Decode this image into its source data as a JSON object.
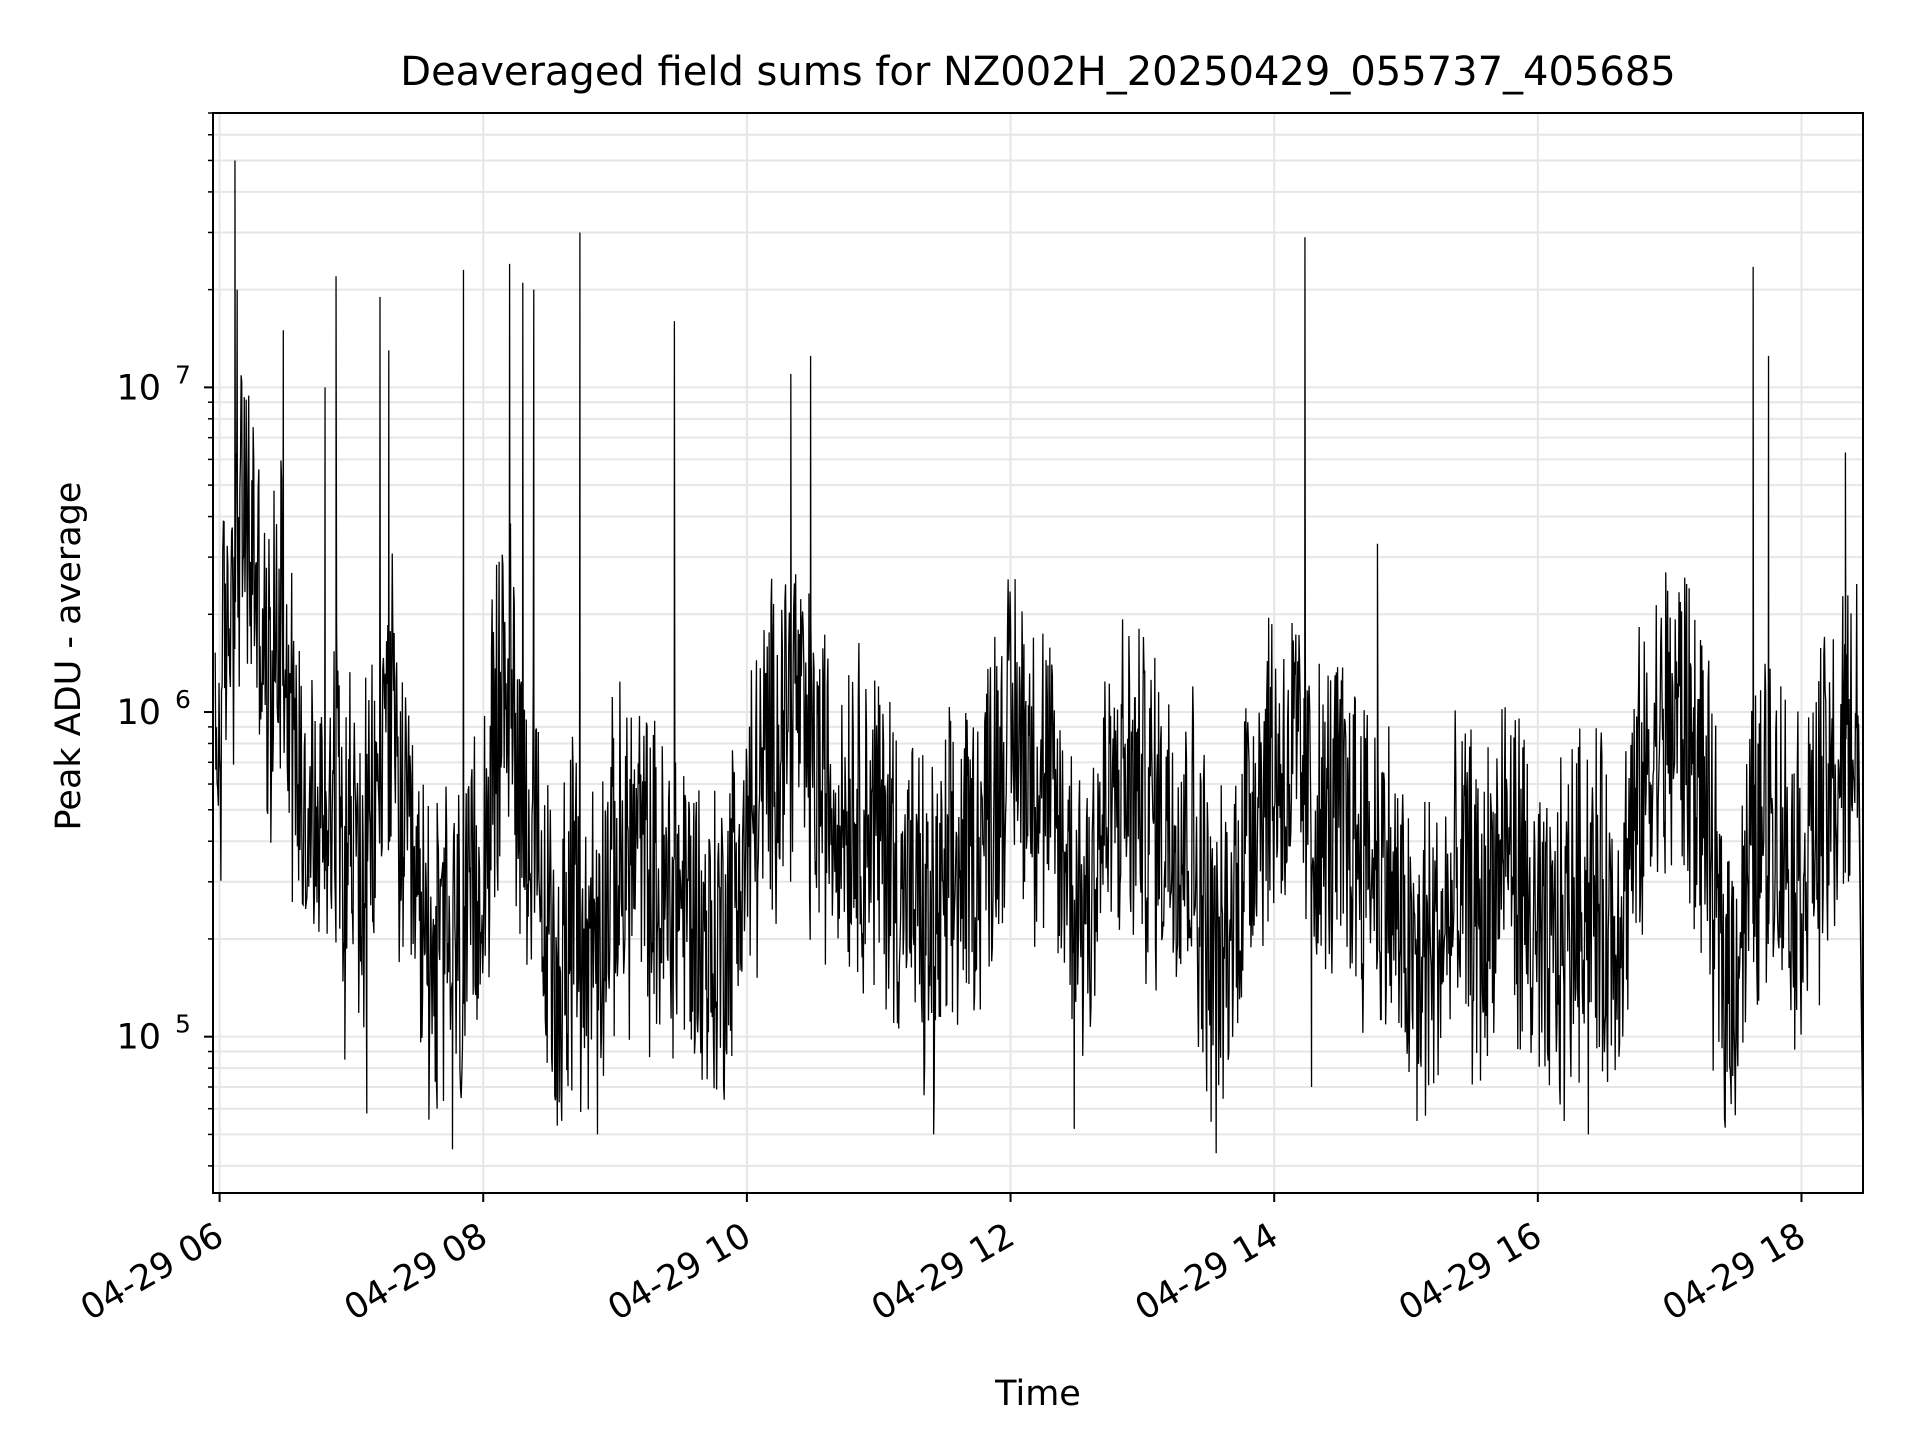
{
  "chart_data": {
    "type": "line",
    "title": "Deaveraged field sums for NZ002H_20250429_055737_405685",
    "xlabel": "Time",
    "ylabel": "Peak ADU - average",
    "yscale": "log",
    "xlim": [
      "2025-04-29 05:57",
      "2025-04-29 18:28"
    ],
    "ylim": [
      33000,
      70000000
    ],
    "grid": true,
    "line_color": "#000000",
    "grid_color": "#e6e6e6",
    "x_ticks": [
      "04-29 06",
      "04-29 08",
      "04-29 10",
      "04-29 12",
      "04-29 14",
      "04-29 16",
      "04-29 18"
    ],
    "y_ticks": [
      "10^5",
      "10^6",
      "10^7"
    ],
    "series": [
      {
        "points": [
          [
            "2025-04-29 05:58",
            600000
          ],
          [
            "2025-04-29 06:04",
            2000000
          ],
          [
            "2025-04-29 06:10",
            4000000
          ],
          [
            "2025-04-29 06:16",
            3000000
          ],
          [
            "2025-04-29 06:22",
            1000000
          ],
          [
            "2025-04-29 06:28",
            2500000
          ],
          [
            "2025-04-29 06:34",
            800000
          ],
          [
            "2025-04-29 06:40",
            500000
          ],
          [
            "2025-04-29 06:46",
            400000
          ],
          [
            "2025-04-29 06:52",
            700000
          ],
          [
            "2025-04-29 06:58",
            500000
          ],
          [
            "2025-04-29 07:04",
            300000
          ],
          [
            "2025-04-29 07:10",
            400000
          ],
          [
            "2025-04-29 07:16",
            1200000
          ],
          [
            "2025-04-29 07:22",
            500000
          ],
          [
            "2025-04-29 07:28",
            250000
          ],
          [
            "2025-04-29 07:34",
            200000
          ],
          [
            "2025-04-29 07:40",
            180000
          ],
          [
            "2025-04-29 07:46",
            200000
          ],
          [
            "2025-04-29 07:52",
            160000
          ],
          [
            "2025-04-29 07:58",
            300000
          ],
          [
            "2025-04-29 08:04",
            600000
          ],
          [
            "2025-04-29 08:10",
            1500000
          ],
          [
            "2025-04-29 08:16",
            800000
          ],
          [
            "2025-04-29 08:22",
            400000
          ],
          [
            "2025-04-29 08:28",
            200000
          ],
          [
            "2025-04-29 08:34",
            150000
          ],
          [
            "2025-04-29 08:40",
            250000
          ],
          [
            "2025-04-29 08:46",
            180000
          ],
          [
            "2025-04-29 08:52",
            220000
          ],
          [
            "2025-04-29 08:58",
            300000
          ],
          [
            "2025-04-29 09:04",
            350000
          ],
          [
            "2025-04-29 09:10",
            400000
          ],
          [
            "2025-04-29 09:16",
            300000
          ],
          [
            "2025-04-29 09:22",
            250000
          ],
          [
            "2025-04-29 09:28",
            300000
          ],
          [
            "2025-04-29 09:34",
            250000
          ],
          [
            "2025-04-29 09:40",
            200000
          ],
          [
            "2025-04-29 09:46",
            180000
          ],
          [
            "2025-04-29 09:52",
            250000
          ],
          [
            "2025-04-29 09:58",
            350000
          ],
          [
            "2025-04-29 10:04",
            500000
          ],
          [
            "2025-04-29 10:10",
            700000
          ],
          [
            "2025-04-29 10:16",
            1000000
          ],
          [
            "2025-04-29 10:22",
            1200000
          ],
          [
            "2025-04-29 10:28",
            700000
          ],
          [
            "2025-04-29 10:34",
            600000
          ],
          [
            "2025-04-29 10:40",
            500000
          ],
          [
            "2025-04-29 10:46",
            550000
          ],
          [
            "2025-04-29 10:52",
            500000
          ],
          [
            "2025-04-29 10:58",
            450000
          ],
          [
            "2025-04-29 11:04",
            400000
          ],
          [
            "2025-04-29 11:10",
            300000
          ],
          [
            "2025-04-29 11:16",
            250000
          ],
          [
            "2025-04-29 11:22",
            200000
          ],
          [
            "2025-04-29 11:28",
            220000
          ],
          [
            "2025-04-29 11:34",
            300000
          ],
          [
            "2025-04-29 11:40",
            350000
          ],
          [
            "2025-04-29 11:46",
            400000
          ],
          [
            "2025-04-29 11:52",
            600000
          ],
          [
            "2025-04-29 11:58",
            800000
          ],
          [
            "2025-04-29 12:04",
            900000
          ],
          [
            "2025-04-29 12:10",
            700000
          ],
          [
            "2025-04-29 12:16",
            600000
          ],
          [
            "2025-04-29 12:22",
            400000
          ],
          [
            "2025-04-29 12:28",
            300000
          ],
          [
            "2025-04-29 12:34",
            250000
          ],
          [
            "2025-04-29 12:40",
            400000
          ],
          [
            "2025-04-29 12:46",
            500000
          ],
          [
            "2025-04-29 12:52",
            600000
          ],
          [
            "2025-04-29 12:58",
            550000
          ],
          [
            "2025-04-29 13:04",
            500000
          ],
          [
            "2025-04-29 13:10",
            450000
          ],
          [
            "2025-04-29 13:16",
            500000
          ],
          [
            "2025-04-29 13:22",
            400000
          ],
          [
            "2025-04-29 13:28",
            250000
          ],
          [
            "2025-04-29 13:34",
            150000
          ],
          [
            "2025-04-29 13:40",
            200000
          ],
          [
            "2025-04-29 13:46",
            400000
          ],
          [
            "2025-04-29 13:52",
            600000
          ],
          [
            "2025-04-29 13:58",
            700000
          ],
          [
            "2025-04-29 14:04",
            650000
          ],
          [
            "2025-04-29 14:10",
            700000
          ],
          [
            "2025-04-29 14:16",
            500000
          ],
          [
            "2025-04-29 14:22",
            400000
          ],
          [
            "2025-04-29 14:28",
            500000
          ],
          [
            "2025-04-29 14:34",
            450000
          ],
          [
            "2025-04-29 14:40",
            400000
          ],
          [
            "2025-04-29 14:46",
            350000
          ],
          [
            "2025-04-29 14:52",
            300000
          ],
          [
            "2025-04-29 14:58",
            200000
          ],
          [
            "2025-04-29 15:04",
            150000
          ],
          [
            "2025-04-29 15:10",
            180000
          ],
          [
            "2025-04-29 15:16",
            200000
          ],
          [
            "2025-04-29 15:22",
            250000
          ],
          [
            "2025-04-29 15:28",
            300000
          ],
          [
            "2025-04-29 15:34",
            200000
          ],
          [
            "2025-04-29 15:40",
            300000
          ],
          [
            "2025-04-29 15:46",
            400000
          ],
          [
            "2025-04-29 15:52",
            300000
          ],
          [
            "2025-04-29 15:58",
            200000
          ],
          [
            "2025-04-29 16:04",
            150000
          ],
          [
            "2025-04-29 16:10",
            200000
          ],
          [
            "2025-04-29 16:16",
            250000
          ],
          [
            "2025-04-29 16:22",
            300000
          ],
          [
            "2025-04-29 16:28",
            250000
          ],
          [
            "2025-04-29 16:34",
            200000
          ],
          [
            "2025-04-29 16:40",
            300000
          ],
          [
            "2025-04-29 16:46",
            500000
          ],
          [
            "2025-04-29 16:52",
            700000
          ],
          [
            "2025-04-29 16:58",
            900000
          ],
          [
            "2025-04-29 17:04",
            1000000
          ],
          [
            "2025-04-29 17:10",
            800000
          ],
          [
            "2025-04-29 17:16",
            500000
          ],
          [
            "2025-04-29 17:22",
            200000
          ],
          [
            "2025-04-29 17:28",
            150000
          ],
          [
            "2025-04-29 17:34",
            250000
          ],
          [
            "2025-04-29 17:40",
            400000
          ],
          [
            "2025-04-29 17:46",
            500000
          ],
          [
            "2025-04-29 17:52",
            400000
          ],
          [
            "2025-04-29 17:58",
            300000
          ],
          [
            "2025-04-29 18:04",
            400000
          ],
          [
            "2025-04-29 18:10",
            500000
          ],
          [
            "2025-04-29 18:16",
            600000
          ],
          [
            "2025-04-29 18:22",
            800000
          ],
          [
            "2025-04-29 18:26",
            1000000
          ]
        ],
        "spikes": [
          [
            "2025-04-29 06:07",
            50000000
          ],
          [
            "2025-04-29 06:08",
            20000000
          ],
          [
            "2025-04-29 06:29",
            15000000
          ],
          [
            "2025-04-29 06:48",
            10000000
          ],
          [
            "2025-04-29 06:53",
            22000000
          ],
          [
            "2025-04-29 07:13",
            19000000
          ],
          [
            "2025-04-29 07:17",
            13000000
          ],
          [
            "2025-04-29 07:51",
            23000000
          ],
          [
            "2025-04-29 08:12",
            24000000
          ],
          [
            "2025-04-29 08:18",
            21000000
          ],
          [
            "2025-04-29 08:23",
            20000000
          ],
          [
            "2025-04-29 08:44",
            30000000
          ],
          [
            "2025-04-29 09:27",
            16000000
          ],
          [
            "2025-04-29 10:20",
            11000000
          ],
          [
            "2025-04-29 10:29",
            12500000
          ],
          [
            "2025-04-29 14:14",
            29000000
          ],
          [
            "2025-04-29 14:47",
            3300000
          ],
          [
            "2025-04-29 17:38",
            23500000
          ],
          [
            "2025-04-29 17:45",
            12500000
          ],
          [
            "2025-04-29 18:20",
            6300000
          ]
        ],
        "dips": [
          [
            "2025-04-29 06:57",
            85000
          ],
          [
            "2025-04-29 07:07",
            58000
          ],
          [
            "2025-04-29 07:39",
            60000
          ],
          [
            "2025-04-29 07:46",
            45000
          ],
          [
            "2025-04-29 08:33",
            65000
          ],
          [
            "2025-04-29 08:52",
            50000
          ],
          [
            "2025-04-29 11:25",
            50000
          ],
          [
            "2025-04-29 12:29",
            52000
          ],
          [
            "2025-04-29 14:17",
            70000
          ],
          [
            "2025-04-29 15:05",
            55000
          ],
          [
            "2025-04-29 16:12",
            55000
          ],
          [
            "2025-04-29 16:23",
            50000
          ],
          [
            "2025-04-29 17:28",
            62000
          ],
          [
            "2025-04-29 18:28",
            43000
          ]
        ]
      }
    ]
  }
}
